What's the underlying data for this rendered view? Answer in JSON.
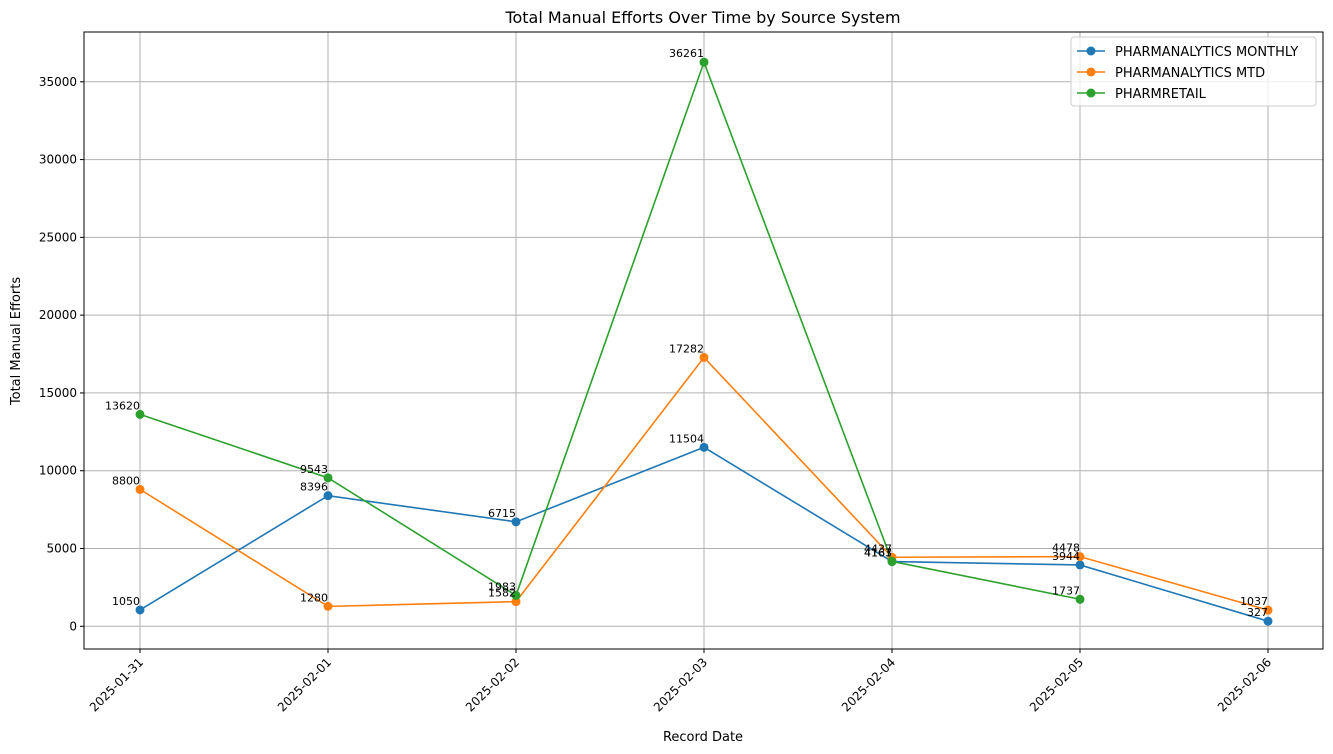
{
  "chart_data": {
    "type": "line",
    "title": "Total Manual Efforts Over Time by Source System",
    "xlabel": "Record Date",
    "ylabel": "Total Manual Efforts",
    "x": [
      "2025-01-31",
      "2025-02-01",
      "2025-02-02",
      "2025-02-03",
      "2025-02-04",
      "2025-02-05",
      "2025-02-06"
    ],
    "ylim": [
      -1460,
      38200
    ],
    "yticks": [
      0,
      5000,
      10000,
      15000,
      20000,
      25000,
      30000,
      35000
    ],
    "grid": true,
    "legend_position": "top-right",
    "series": [
      {
        "name": "PHARMANALYTICS MONTHLY",
        "color": "#1f77b4",
        "values": [
          1050,
          8396,
          6715,
          11504,
          4163,
          3944,
          327
        ]
      },
      {
        "name": "PHARMANALYTICS MTD",
        "color": "#ff7f0e",
        "values": [
          8800,
          1280,
          1582,
          17282,
          4437,
          4478,
          1037
        ]
      },
      {
        "name": "PHARMRETAIL",
        "color": "#2ca02c",
        "values": [
          13620,
          9543,
          1983,
          36261,
          4167,
          1737,
          null
        ]
      }
    ]
  }
}
